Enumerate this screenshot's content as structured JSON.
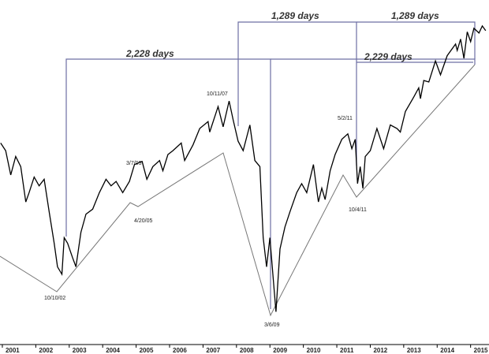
{
  "chart_data": {
    "type": "line",
    "x": [
      2000.95,
      2001.1,
      2001.25,
      2001.4,
      2001.55,
      2001.7,
      2001.8,
      2001.95,
      2002.1,
      2002.25,
      2002.4,
      2002.55,
      2002.65,
      2002.78,
      2002.85,
      2002.95,
      2003.1,
      2003.2,
      2003.35,
      2003.5,
      2003.7,
      2003.9,
      2004.1,
      2004.25,
      2004.4,
      2004.6,
      2004.8,
      2004.95,
      2005.18,
      2005.32,
      2005.5,
      2005.7,
      2005.8,
      2005.95,
      2006.1,
      2006.35,
      2006.45,
      2006.7,
      2006.9,
      2007.15,
      2007.2,
      2007.45,
      2007.6,
      2007.78,
      2007.9,
      2008.05,
      2008.2,
      2008.4,
      2008.55,
      2008.7,
      2008.8,
      2008.9,
      2009.0,
      2009.1,
      2009.18,
      2009.3,
      2009.45,
      2009.6,
      2009.8,
      2009.95,
      2010.1,
      2010.3,
      2010.45,
      2010.55,
      2010.65,
      2010.8,
      2010.95,
      2011.15,
      2011.33,
      2011.45,
      2011.55,
      2011.62,
      2011.7,
      2011.78,
      2011.85,
      2012.0,
      2012.2,
      2012.4,
      2012.6,
      2012.8,
      2012.9,
      2013.05,
      2013.3,
      2013.45,
      2013.5,
      2013.6,
      2013.75,
      2013.95,
      2014.1,
      2014.3,
      2014.55,
      2014.6,
      2014.7,
      2014.8,
      2014.9,
      2015.0,
      2015.1,
      2015.25,
      2015.35,
      2015.45
    ],
    "series": [
      {
        "color": "#000000",
        "values": [
          1320,
          1280,
          1160,
          1250,
          1200,
          1040,
          1080,
          1150,
          1110,
          1140,
          1000,
          880,
          800,
          776,
          900,
          880,
          830,
          800,
          920,
          990,
          1010,
          1080,
          1140,
          1110,
          1130,
          1080,
          1130,
          1210,
          1225,
          1140,
          1200,
          1230,
          1180,
          1260,
          1280,
          1320,
          1230,
          1310,
          1400,
          1440,
          1380,
          1530,
          1410,
          1565,
          1450,
          1330,
          1280,
          1420,
          1230,
          1200,
          900,
          800,
          900,
          760,
          667,
          860,
          940,
          1000,
          1080,
          1120,
          1080,
          1210,
          1040,
          1100,
          1050,
          1180,
          1260,
          1340,
          1370,
          1290,
          1340,
          1120,
          1200,
          1099,
          1250,
          1280,
          1400,
          1290,
          1420,
          1400,
          1380,
          1500,
          1590,
          1650,
          1580,
          1700,
          1690,
          1840,
          1740,
          1880,
          1970,
          1920,
          2010,
          1860,
          2070,
          1990,
          2100,
          2060,
          2120,
          2080
        ]
      }
    ],
    "xlim": [
      2000.93,
      2015.55
    ],
    "xticks": [
      {
        "value": 2001,
        "label": "2001"
      },
      {
        "value": 2002,
        "label": "2002"
      },
      {
        "value": 2003,
        "label": "2003"
      },
      {
        "value": 2004,
        "label": "2004"
      },
      {
        "value": 2005,
        "label": "2005"
      },
      {
        "value": 2006,
        "label": "2006"
      },
      {
        "value": 2007,
        "label": "2007"
      },
      {
        "value": 2008,
        "label": "2008"
      },
      {
        "value": 2009,
        "label": "2009"
      },
      {
        "value": 2010,
        "label": "2010"
      },
      {
        "value": 2011,
        "label": "2011"
      },
      {
        "value": 2012,
        "label": "2012"
      },
      {
        "value": 2013,
        "label": "2013"
      },
      {
        "value": 2014,
        "label": "2014"
      },
      {
        "value": 2015,
        "label": "2015"
      }
    ],
    "ylim": [
      584,
      2355
    ],
    "log_scale": true,
    "annotations": [
      "10/10/02",
      "3/7/05",
      "4/20/05",
      "10/11/07",
      "3/6/09",
      "5/2/11",
      "10/4/11",
      "2,228 days",
      "1,289 days",
      "1,289 days",
      "2,229 days"
    ]
  }
}
